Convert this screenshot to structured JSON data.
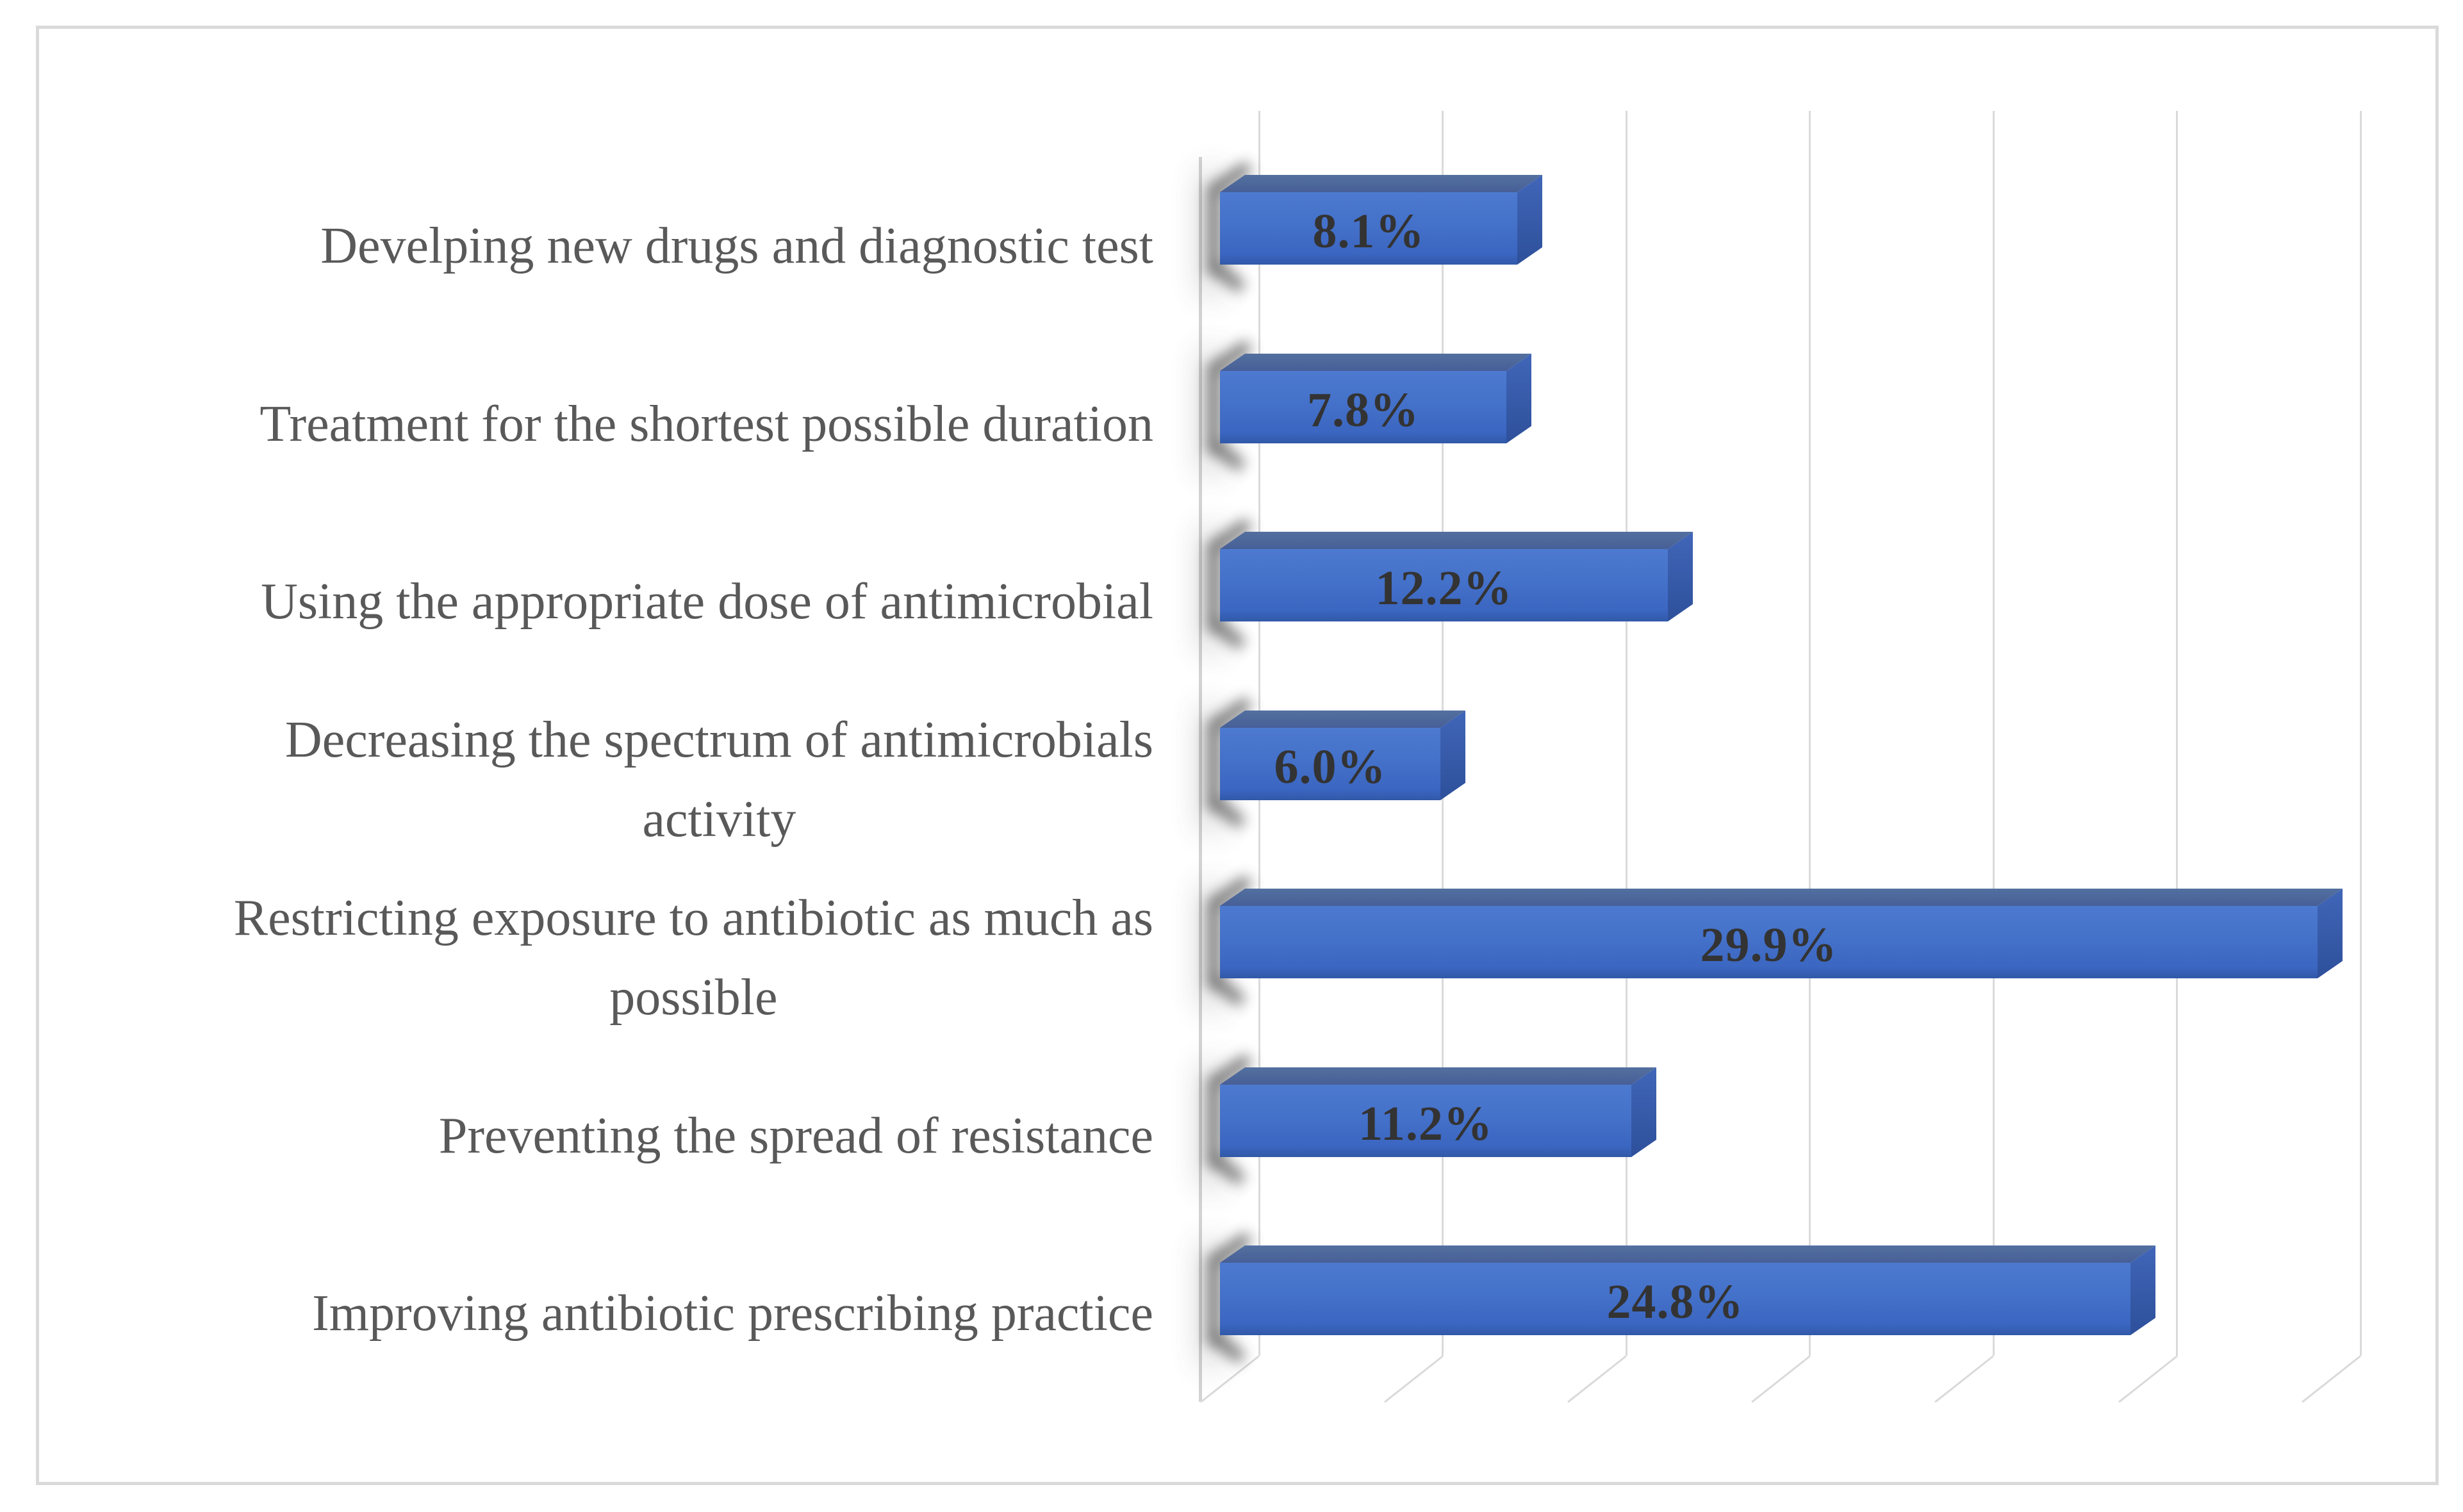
{
  "chart_data": {
    "type": "bar",
    "orientation": "horizontal",
    "style": "3d-beveled",
    "title": "",
    "xlabel": "",
    "ylabel": "",
    "categories": [
      "Develping new drugs and diagnostic test",
      "Treatment for the shortest possible duration",
      "Using the appropriate dose of antimicrobial",
      "Decreasing the spectrum of antimicrobials activity",
      "Restricting exposure to antibiotic as much as possible",
      "Preventing the spread of resistance",
      "Improving antibiotic prescribing practice"
    ],
    "category_lines": [
      [
        "Develping new drugs and diagnostic test"
      ],
      [
        "Treatment for the shortest possible duration"
      ],
      [
        "Using the appropriate dose of antimicrobial"
      ],
      [
        "Decreasing the spectrum of antimicrobials",
        "activity"
      ],
      [
        "Restricting exposure to antibiotic as much as",
        "possible"
      ],
      [
        "Preventing the spread of resistance"
      ],
      [
        "Improving antibiotic prescribing practice"
      ]
    ],
    "values": [
      8.1,
      7.8,
      12.2,
      6.0,
      29.9,
      11.2,
      24.8
    ],
    "data_labels": [
      "8.1%",
      "7.8%",
      "12.2%",
      "6.0%",
      "29.9%",
      "11.2%",
      "24.8%"
    ],
    "xlim": [
      0,
      30
    ],
    "grid_step": 5,
    "grid": true,
    "legend": false,
    "value_axis_labels_visible": false
  },
  "colors": {
    "background": "#FFFFFF",
    "frame_border": "#DADADA",
    "gridline": "#DADADA",
    "wall_edge": "#D3D3D3",
    "bar_front_top": "#4D7AD0",
    "bar_front_mid": "#4471C9",
    "bar_front_bottom": "#3159A8",
    "bar_top_face": "#4F6BA4",
    "bar_side_face": "#2E509B",
    "bar_shadow": "#3C3C3C",
    "category_text": "#595959",
    "value_text": "#333333"
  }
}
